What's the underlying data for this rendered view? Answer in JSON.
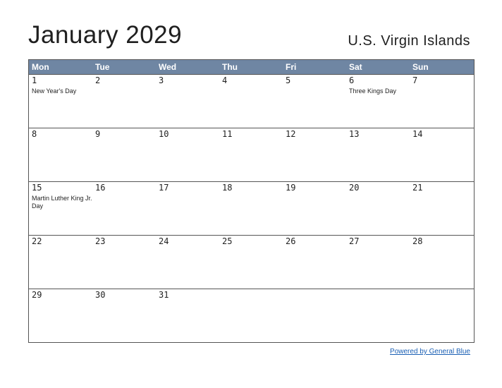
{
  "header": {
    "title": "January 2029",
    "region": "U.S. Virgin Islands"
  },
  "calendar": {
    "day_names": [
      "Mon",
      "Tue",
      "Wed",
      "Thu",
      "Fri",
      "Sat",
      "Sun"
    ],
    "weeks": [
      [
        {
          "day": "1",
          "holiday": "New Year's Day"
        },
        {
          "day": "2",
          "holiday": ""
        },
        {
          "day": "3",
          "holiday": ""
        },
        {
          "day": "4",
          "holiday": ""
        },
        {
          "day": "5",
          "holiday": ""
        },
        {
          "day": "6",
          "holiday": "Three Kings Day"
        },
        {
          "day": "7",
          "holiday": ""
        }
      ],
      [
        {
          "day": "8",
          "holiday": ""
        },
        {
          "day": "9",
          "holiday": ""
        },
        {
          "day": "10",
          "holiday": ""
        },
        {
          "day": "11",
          "holiday": ""
        },
        {
          "day": "12",
          "holiday": ""
        },
        {
          "day": "13",
          "holiday": ""
        },
        {
          "day": "14",
          "holiday": ""
        }
      ],
      [
        {
          "day": "15",
          "holiday": "Martin Luther King Jr. Day"
        },
        {
          "day": "16",
          "holiday": ""
        },
        {
          "day": "17",
          "holiday": ""
        },
        {
          "day": "18",
          "holiday": ""
        },
        {
          "day": "19",
          "holiday": ""
        },
        {
          "day": "20",
          "holiday": ""
        },
        {
          "day": "21",
          "holiday": ""
        }
      ],
      [
        {
          "day": "22",
          "holiday": ""
        },
        {
          "day": "23",
          "holiday": ""
        },
        {
          "day": "24",
          "holiday": ""
        },
        {
          "day": "25",
          "holiday": ""
        },
        {
          "day": "26",
          "holiday": ""
        },
        {
          "day": "27",
          "holiday": ""
        },
        {
          "day": "28",
          "holiday": ""
        }
      ],
      [
        {
          "day": "29",
          "holiday": ""
        },
        {
          "day": "30",
          "holiday": ""
        },
        {
          "day": "31",
          "holiday": ""
        },
        {
          "day": "",
          "holiday": ""
        },
        {
          "day": "",
          "holiday": ""
        },
        {
          "day": "",
          "holiday": ""
        },
        {
          "day": "",
          "holiday": ""
        }
      ]
    ]
  },
  "footer": {
    "link_text": "Powered by General Blue"
  },
  "colors": {
    "header_bg": "#6f86a3",
    "link": "#1a5fb4"
  }
}
